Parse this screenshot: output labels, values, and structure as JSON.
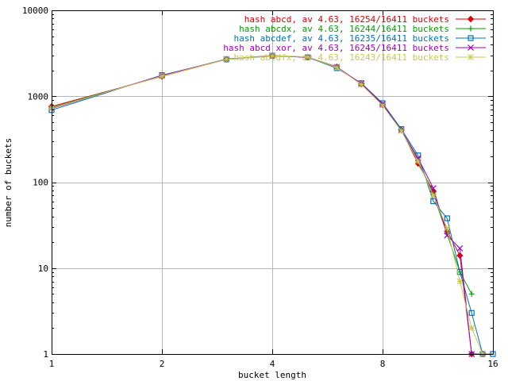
{
  "chart_data": {
    "type": "line",
    "title": "",
    "xlabel": "bucket length",
    "ylabel": "number of buckets",
    "x_scale": "log2",
    "y_scale": "log10",
    "xlim": [
      1,
      16
    ],
    "ylim": [
      1,
      10000
    ],
    "x_ticks": [
      1,
      2,
      4,
      8,
      16
    ],
    "x_tick_labels": [
      "1",
      "2",
      "4",
      "8",
      "16"
    ],
    "y_ticks": [
      1,
      10,
      100,
      1000,
      10000
    ],
    "y_tick_labels": [
      "1",
      "10",
      "100",
      "1000",
      "10000"
    ],
    "grid": true,
    "legend_position": "top-right",
    "series": [
      {
        "name": "hash abcd, av 4.63, 16254/16411 buckets",
        "color": "#e00000",
        "marker": "diamond",
        "points": [
          [
            1,
            760
          ],
          [
            2,
            1700
          ],
          [
            3,
            2700
          ],
          [
            4,
            2960
          ],
          [
            5,
            2850
          ],
          [
            6,
            2200
          ],
          [
            7,
            1380
          ],
          [
            8,
            790
          ],
          [
            9,
            405
          ],
          [
            10,
            165
          ],
          [
            11,
            78
          ],
          [
            12,
            27
          ],
          [
            13,
            14
          ],
          [
            14,
            1
          ],
          [
            15,
            1
          ]
        ]
      },
      {
        "name": "hash abcdx, av 4.63, 16244/16411 buckets",
        "color": "#00a000",
        "marker": "plus",
        "points": [
          [
            1,
            740
          ],
          [
            2,
            1720
          ],
          [
            3,
            2720
          ],
          [
            4,
            2940
          ],
          [
            5,
            2860
          ],
          [
            6,
            2180
          ],
          [
            7,
            1390
          ],
          [
            8,
            800
          ],
          [
            9,
            410
          ],
          [
            10,
            180
          ],
          [
            11,
            72
          ],
          [
            12,
            25
          ],
          [
            13,
            9
          ],
          [
            14,
            5
          ]
        ]
      },
      {
        "name": "hash abcdef, av 4.63, 16235/16411 buckets",
        "color": "#0070c0",
        "marker": "square",
        "points": [
          [
            1,
            690
          ],
          [
            2,
            1760
          ],
          [
            3,
            2680
          ],
          [
            4,
            2950
          ],
          [
            5,
            2840
          ],
          [
            6,
            2120
          ],
          [
            7,
            1420
          ],
          [
            8,
            830
          ],
          [
            9,
            415
          ],
          [
            10,
            205
          ],
          [
            11,
            60
          ],
          [
            12,
            38
          ],
          [
            13,
            9
          ],
          [
            14,
            3
          ],
          [
            15,
            1
          ],
          [
            16,
            1
          ]
        ]
      },
      {
        "name": "hash abcd xor, av 4.63, 16245/16411 buckets",
        "color": "#a000c0",
        "marker": "cross",
        "points": [
          [
            1,
            720
          ],
          [
            2,
            1740
          ],
          [
            3,
            2700
          ],
          [
            4,
            2980
          ],
          [
            5,
            2830
          ],
          [
            6,
            2190
          ],
          [
            7,
            1400
          ],
          [
            8,
            810
          ],
          [
            9,
            400
          ],
          [
            10,
            190
          ],
          [
            11,
            85
          ],
          [
            12,
            24
          ],
          [
            13,
            17
          ],
          [
            14,
            1
          ]
        ]
      },
      {
        "name": "hash abcdfx, av 4.63, 16243/16411 buckets",
        "color": "#c8c850",
        "marker": "star",
        "points": [
          [
            1,
            730
          ],
          [
            2,
            1710
          ],
          [
            3,
            2690
          ],
          [
            4,
            2960
          ],
          [
            5,
            2870
          ],
          [
            6,
            2160
          ],
          [
            7,
            1370
          ],
          [
            8,
            780
          ],
          [
            9,
            395
          ],
          [
            10,
            175
          ],
          [
            11,
            70
          ],
          [
            12,
            29
          ],
          [
            13,
            7
          ],
          [
            14,
            2
          ],
          [
            15,
            1
          ]
        ]
      }
    ]
  }
}
